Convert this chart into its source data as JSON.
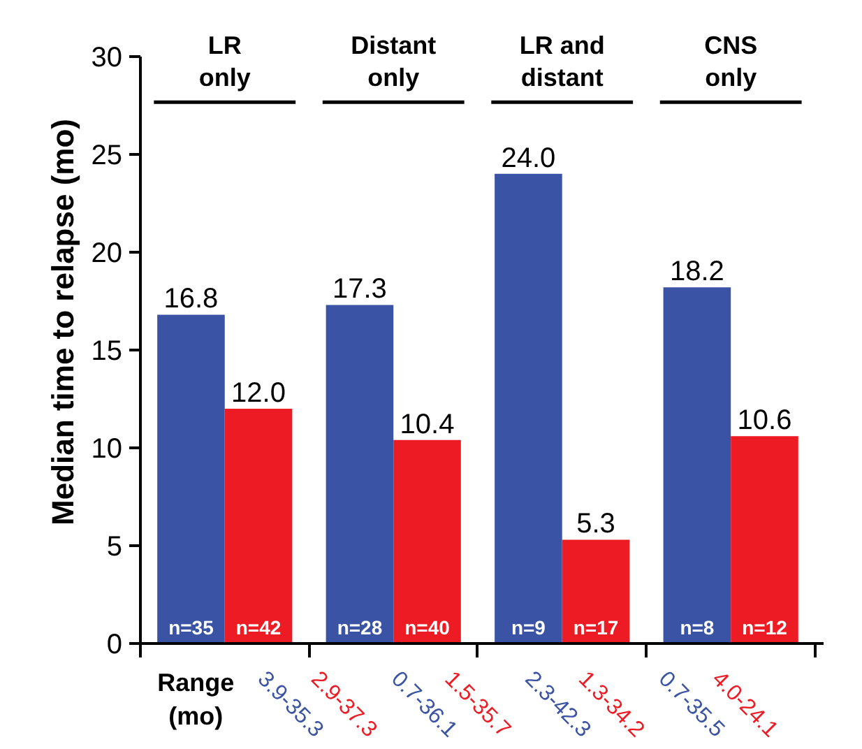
{
  "chart_data": {
    "type": "bar",
    "ylabel": "Median time to relapse (mo)",
    "categories": [
      "LR\nonly",
      "Distant\nonly",
      "LR and\ndistant",
      "CNS\nonly"
    ],
    "series": [
      {
        "color": "#3a53a4",
        "values": [
          16.8,
          17.3,
          24.0,
          18.2
        ],
        "value_labels": [
          "16.8",
          "17.3",
          "24.0",
          "18.2"
        ]
      },
      {
        "color": "#ed1c24",
        "values": [
          12.0,
          10.4,
          5.3,
          10.6
        ],
        "value_labels": [
          "12.0",
          "10.4",
          "5.3",
          "10.6"
        ]
      }
    ],
    "annotations": [
      "Range\n(mo)",
      "n=35",
      "3.9-35.3",
      "n=42",
      "2.9-37.3",
      "n=28",
      "0.7-36.1",
      "n=40",
      "1.5-35.7",
      "n=9",
      "2.3-42.3",
      "n=17",
      "1.3-34.2",
      "n=8",
      "0.7-35.5",
      "n=12",
      "4.0-24.1"
    ],
    "ylim": [
      0,
      30
    ],
    "yticks": [
      0,
      5,
      10,
      15,
      20,
      25,
      30
    ],
    "grid": false,
    "legend": false
  }
}
